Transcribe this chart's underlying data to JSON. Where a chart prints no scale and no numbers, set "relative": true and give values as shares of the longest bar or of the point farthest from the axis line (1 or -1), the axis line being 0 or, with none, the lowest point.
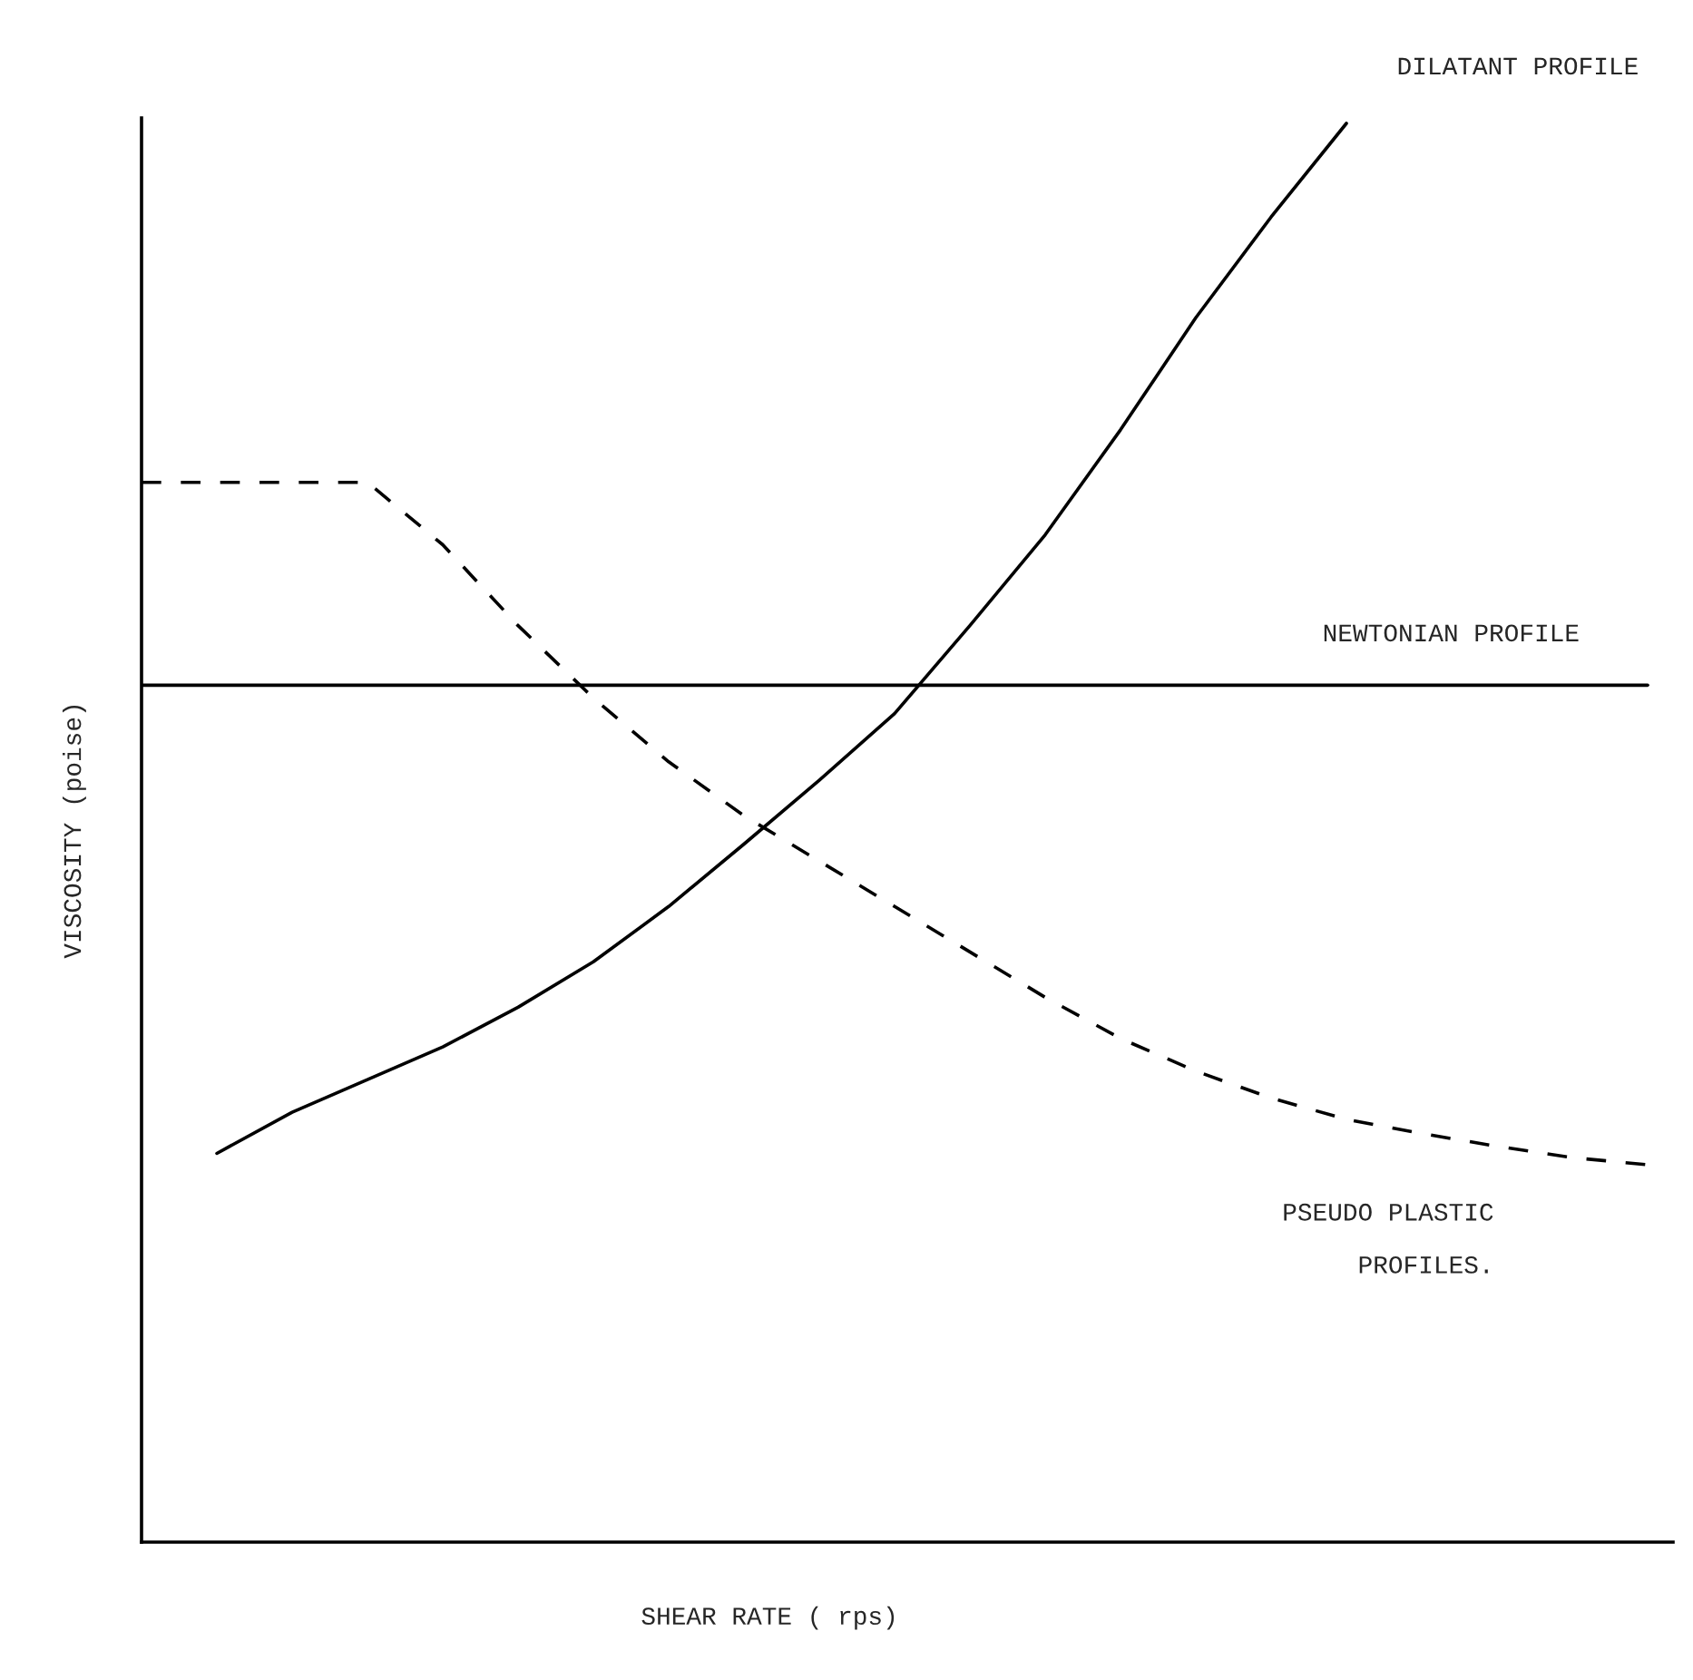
{
  "chart_data": {
    "type": "line",
    "relative": true,
    "xlabel": "SHEAR RATE ( rps)",
    "ylabel": "VISCOSITY (poise)",
    "categories": [
      null,
      null,
      null,
      null,
      null,
      null,
      null,
      null,
      null,
      null,
      null,
      null,
      null,
      null,
      null,
      null,
      null,
      null,
      null,
      null,
      null
    ],
    "series": [
      {
        "name": "DILATANT PROFILE",
        "color": "#000000",
        "line_style": "solid",
        "values": [
          null,
          0.274,
          0.303,
          0.326,
          0.349,
          0.377,
          0.409,
          0.448,
          0.492,
          0.537,
          0.584,
          0.646,
          0.71,
          0.784,
          0.863,
          0.934,
          1,
          null,
          null,
          null,
          null
        ]
      },
      {
        "name": "NEWTONIAN PROFILE",
        "color": "#000000",
        "line_style": "solid",
        "values": [
          0.604,
          0.604,
          0.604,
          0.604,
          0.604,
          0.604,
          0.604,
          0.604,
          0.604,
          0.604,
          0.604,
          0.604,
          0.604,
          0.604,
          0.604,
          0.604,
          0.604,
          0.604,
          0.604,
          0.604,
          0.604
        ]
      },
      {
        "name": "PSEUDO PLASTIC\nPROFILES.",
        "color": "#000000",
        "line_style": "dashed",
        "values": [
          0.747,
          0.747,
          0.747,
          0.747,
          0.703,
          0.646,
          0.595,
          0.55,
          0.512,
          0.48,
          0.448,
          0.416,
          0.384,
          0.355,
          0.332,
          0.313,
          0.298,
          0.288,
          0.279,
          0.271,
          0.266
        ]
      }
    ],
    "legend": false
  }
}
